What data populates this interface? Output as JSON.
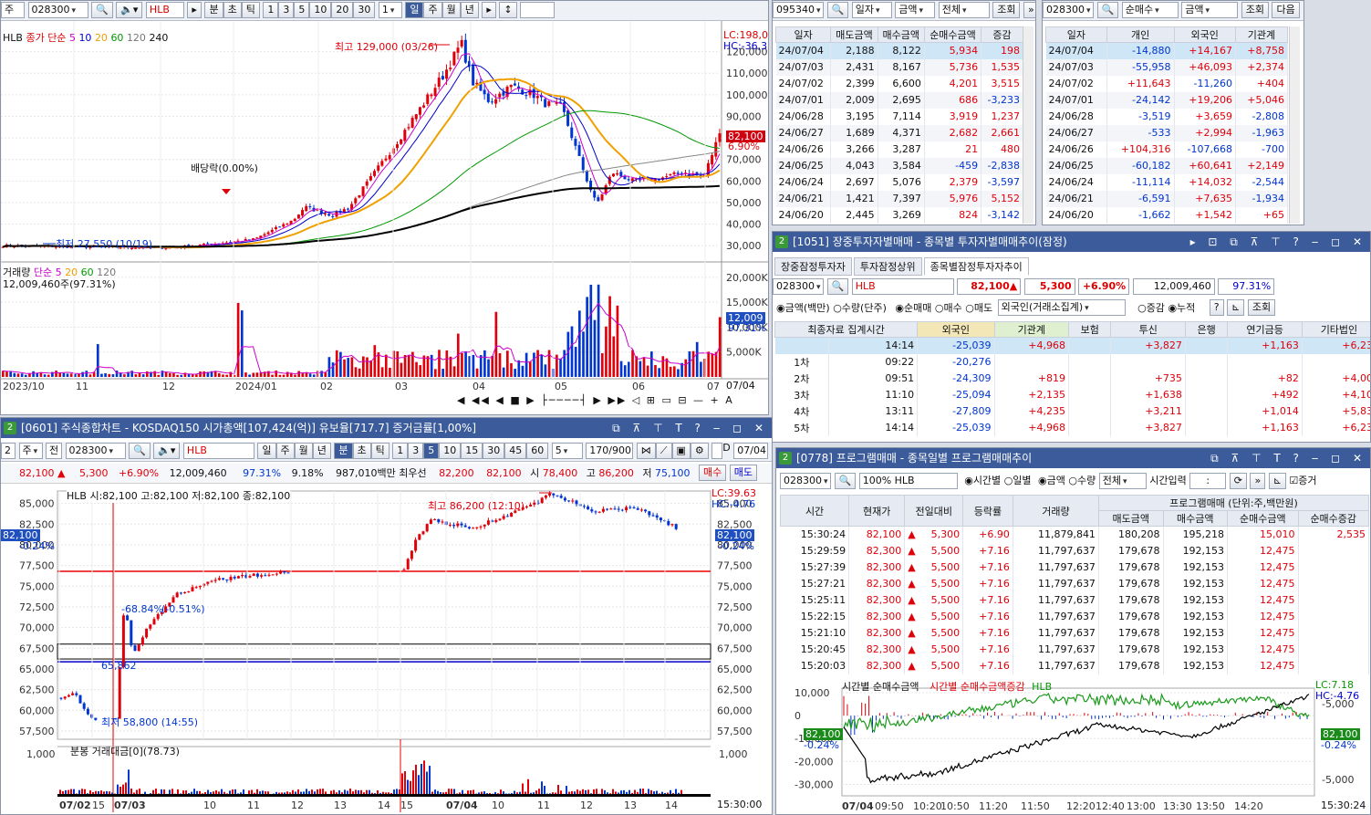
{
  "daily_chart": {
    "code": "028300",
    "name": "HLB",
    "unit_buttons": [
      "분",
      "초",
      "틱",
      "1",
      "3",
      "5",
      "10",
      "20",
      "30"
    ],
    "unit_value": "1",
    "period_buttons": [
      "일",
      "주",
      "월",
      "년"
    ],
    "legend": "HLB 종가 단순 5 10 20 60 120 240",
    "lc": "LC:198,0",
    "hc": "HC:-36,3",
    "high_label": "최고 129,000 (03/26)",
    "dividend_label": "배당락(0.00%)",
    "low_label": "최저 27,550 (10/19)",
    "price_tag": "82,100",
    "pct_tag": "6.90%",
    "price_axis": [
      "120,000",
      "110,000",
      "100,000",
      "90,000",
      "80,000",
      "70,000",
      "60,000",
      "50,000",
      "40,000",
      "30,000"
    ],
    "volume_legend": "거래량 단순 5 20 60 120",
    "volume_value": "12,009,460주(97.31%)",
    "volume_axis": [
      "20,000K",
      "15,000K",
      "10,000K",
      "5,000K"
    ],
    "volume_tag": "12,009",
    "volume_pct_tag": "97.31%",
    "x_labels": [
      "2023/10",
      "11",
      "12",
      "2024/01",
      "02",
      "03",
      "04",
      "05",
      "06",
      "07"
    ],
    "date_right": "07/04"
  },
  "minute_chart": {
    "title": "[0601] 주식종합차트 - KOSDAQ150 시가총액[107,424(억)] 유보율[717.7] 증거금률[1,00%]",
    "code": "028300",
    "name": "HLB",
    "tabs": [
      "일",
      "주",
      "월",
      "년",
      "분",
      "초",
      "틱",
      "1",
      "3",
      "5",
      "10",
      "15",
      "30",
      "45",
      "60"
    ],
    "interval": "5",
    "count": "170/900",
    "date": "07/04",
    "quote": {
      "price": "82,100",
      "change": "5,300",
      "pct": "+6.90%",
      "volume": "12,009,460",
      "vol_pct": "97.31%",
      "turnover": "9.18%",
      "amount": "987,010백만",
      "best_label": "최우선",
      "ask": "82,200",
      "bid": "82,100",
      "open_label": "시",
      "open": "78,400",
      "high_label": "고",
      "high": "86,200",
      "low_label": "저",
      "low": "75,100",
      "buy_button": "매수",
      "sell_button": "매도"
    },
    "ohlc_legend": "HLB 시:82,100 고:82,100 저:82,100 종:82,100",
    "lc": "LC:39.63",
    "hc": "HC:-4.76",
    "high_label": "최고 86,200 (12:10)",
    "low_label": "최저 58,800 (14:55)",
    "pct_low": "-68.84%",
    "pct_mid": "(-0.51%)",
    "level_label": "65,862",
    "price_tag": "82,100",
    "pct_tag": "-0.24%",
    "price_axis": [
      "85,000",
      "82,500",
      "80,000",
      "77,500",
      "75,000",
      "72,500",
      "70,000",
      "67,500",
      "65,000",
      "62,500",
      "60,000",
      "57,500"
    ],
    "vol_legend": "분봉 거래대금[0](78.73)",
    "vol_axis": [
      "1,000"
    ],
    "x_labels": [
      "07/02",
      "15",
      "07/03",
      "10",
      "11",
      "12",
      "13",
      "14",
      "15",
      "07/04",
      "10",
      "11",
      "12",
      "13",
      "14",
      "15"
    ],
    "time_right": "15:30:00"
  },
  "investor_daily": {
    "code": "095340",
    "combos": [
      "일자",
      "금액",
      "전체"
    ],
    "button": "조회",
    "headers": [
      "일자",
      "매도금액",
      "매수금액",
      "순매수금액",
      "증감"
    ],
    "rows": [
      [
        "24/07/04",
        "2,188",
        "8,122",
        "5,934",
        "198"
      ],
      [
        "24/07/03",
        "2,431",
        "8,167",
        "5,736",
        "1,535"
      ],
      [
        "24/07/02",
        "2,399",
        "6,600",
        "4,201",
        "3,515"
      ],
      [
        "24/07/01",
        "2,009",
        "2,695",
        "686",
        "-3,233"
      ],
      [
        "24/06/28",
        "3,195",
        "7,114",
        "3,919",
        "1,237"
      ],
      [
        "24/06/27",
        "1,689",
        "4,371",
        "2,682",
        "2,661"
      ],
      [
        "24/06/26",
        "3,266",
        "3,287",
        "21",
        "480"
      ],
      [
        "24/06/25",
        "4,043",
        "3,584",
        "-459",
        "-2,838"
      ],
      [
        "24/06/24",
        "2,697",
        "5,076",
        "2,379",
        "-3,597"
      ],
      [
        "24/06/21",
        "1,421",
        "7,397",
        "5,976",
        "5,152"
      ],
      [
        "24/06/20",
        "2,445",
        "3,269",
        "824",
        "-3,142"
      ]
    ]
  },
  "net_buy_daily": {
    "code": "028300",
    "combos": [
      "순매수",
      "금액"
    ],
    "buttons": [
      "조회",
      "다음"
    ],
    "headers": [
      "일자",
      "개인",
      "외국인",
      "기관계"
    ],
    "rows": [
      [
        "24/07/04",
        "-14,880",
        "+14,167",
        "+8,758"
      ],
      [
        "24/07/03",
        "-55,958",
        "+46,093",
        "+2,374"
      ],
      [
        "24/07/02",
        "+11,643",
        "-11,260",
        "+404"
      ],
      [
        "24/07/01",
        "-24,142",
        "+19,206",
        "+5,046"
      ],
      [
        "24/06/28",
        "-3,519",
        "+3,659",
        "-2,808"
      ],
      [
        "24/06/27",
        "-533",
        "+2,994",
        "-1,963"
      ],
      [
        "24/06/26",
        "+104,316",
        "-107,668",
        "-700"
      ],
      [
        "24/06/25",
        "-60,182",
        "+60,641",
        "+2,149"
      ],
      [
        "24/06/24",
        "-11,114",
        "+14,032",
        "-2,544"
      ],
      [
        "24/06/21",
        "-6,591",
        "+7,635",
        "-1,934"
      ],
      [
        "24/06/20",
        "-1,662",
        "+1,542",
        "+65"
      ]
    ]
  },
  "intraday_investor": {
    "title": "[1051] 장중투자자별매매 - 종목별 투자자별매매추이(잠정)",
    "tabs": [
      "장중잠정투자자",
      "투자잠정상위",
      "종목별잠정투자자추이"
    ],
    "code": "028300",
    "name": "HLB",
    "price": "82,100",
    "change": "5,300",
    "pct": "+6.90%",
    "volume": "12,009,460",
    "vol_pct": "97.31%",
    "radio1": [
      "금액(백만)",
      "수량(단주)"
    ],
    "radio2": [
      "순매매",
      "매수",
      "매도"
    ],
    "combo": "외국인(거래소집계)",
    "radio3": [
      "증감",
      "누적"
    ],
    "query": "조회",
    "headers": [
      "최종자료 집계시간",
      "외국인",
      "기관계",
      "보험",
      "투신",
      "은행",
      "연기금등",
      "기타법인"
    ],
    "rows": [
      [
        "",
        "14:14",
        "-25,039",
        "+4,968",
        "",
        "+3,827",
        "",
        "+1,163",
        "+6,23"
      ],
      [
        "1차",
        "09:22",
        "-20,276",
        "",
        "",
        "",
        "",
        "",
        ""
      ],
      [
        "2차",
        "09:51",
        "-24,309",
        "+819",
        "",
        "+735",
        "",
        "+82",
        "+4,00"
      ],
      [
        "3차",
        "11:10",
        "-25,094",
        "+2,135",
        "",
        "+1,638",
        "",
        "+492",
        "+4,10"
      ],
      [
        "4차",
        "13:11",
        "-27,809",
        "+4,235",
        "",
        "+3,211",
        "",
        "+1,014",
        "+5,83"
      ],
      [
        "5차",
        "14:14",
        "-25,039",
        "+4,968",
        "",
        "+3,827",
        "",
        "+1,163",
        "+6,23"
      ]
    ]
  },
  "program_trading": {
    "title": "[0778] 프로그램매매 - 종목일별 프로그램매매추이",
    "code": "028300",
    "name": "HLB",
    "margin": "100%",
    "radio1": [
      "시간별",
      "일별"
    ],
    "radio2": [
      "금액",
      "수량"
    ],
    "combo": "전체",
    "time_label": "시간입력",
    "time_value": ":",
    "checkbox": "증거",
    "headers": [
      "시간",
      "현재가",
      "전일대비",
      "등락률",
      "거래량",
      "매도금액",
      "매수금액",
      "순매수금액",
      "순매수증감"
    ],
    "group_header": "프로그램매매 (단위:주,백만원)",
    "rows": [
      [
        "15:30:24",
        "82,100",
        "5,300",
        "+6.90",
        "11,879,841",
        "180,208",
        "195,218",
        "15,010",
        "2,535"
      ],
      [
        "15:29:59",
        "82,300",
        "5,500",
        "+7.16",
        "11,797,637",
        "179,678",
        "192,153",
        "12,475",
        ""
      ],
      [
        "15:27:39",
        "82,300",
        "5,500",
        "+7.16",
        "11,797,637",
        "179,678",
        "192,153",
        "12,475",
        ""
      ],
      [
        "15:27:21",
        "82,300",
        "5,500",
        "+7.16",
        "11,797,637",
        "179,678",
        "192,153",
        "12,475",
        ""
      ],
      [
        "15:25:11",
        "82,300",
        "5,500",
        "+7.16",
        "11,797,637",
        "179,678",
        "192,153",
        "12,475",
        ""
      ],
      [
        "15:22:15",
        "82,300",
        "5,500",
        "+7.16",
        "11,797,637",
        "179,678",
        "192,153",
        "12,475",
        ""
      ],
      [
        "15:21:10",
        "82,300",
        "5,500",
        "+7.16",
        "11,797,637",
        "179,678",
        "192,153",
        "12,475",
        ""
      ],
      [
        "15:20:45",
        "82,300",
        "5,500",
        "+7.16",
        "11,797,637",
        "179,678",
        "192,153",
        "12,475",
        ""
      ],
      [
        "15:20:03",
        "82,300",
        "5,500",
        "+7.16",
        "11,797,637",
        "179,678",
        "192,153",
        "12,475",
        ""
      ]
    ],
    "chart_legend": [
      "시간별 순매수금액",
      "시간별 순매수금액증감",
      "HLB"
    ],
    "lc": "LC:7.18",
    "hc": "HC:-4.76",
    "left_axis": [
      "10,000",
      "0",
      "-10,000",
      "-20,000",
      "-30,000"
    ],
    "right_axis": [
      "-5,000",
      "-5,000"
    ],
    "tag_left": "82,100",
    "tag_left_pct": "-0.24%",
    "tag_right": "82,100",
    "tag_right_pct": "-0.24%",
    "x_labels": [
      "07/04",
      "09:50",
      "10:20",
      "10:50",
      "11:20",
      "11:50",
      "12:20",
      "12:40",
      "13:00",
      "13:30",
      "13:50",
      "14:20"
    ],
    "time_right": "15:30:24"
  },
  "colors": {
    "up": "#e0000a",
    "down": "#0035d0",
    "title": "#3b5b9a",
    "ma5": "#ff00ff",
    "ma20": "#f0a000",
    "ma60": "#00a000"
  }
}
